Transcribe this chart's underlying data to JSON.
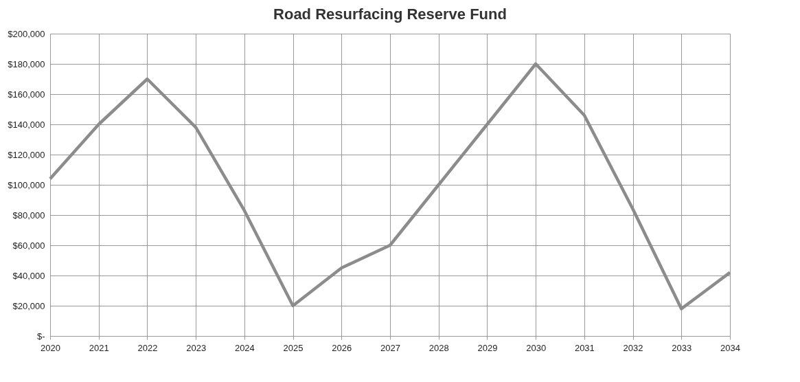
{
  "chart_data": {
    "type": "line",
    "title": "Road Resurfacing  Reserve Fund",
    "categories": [
      "2020",
      "2021",
      "2022",
      "2023",
      "2024",
      "2025",
      "2026",
      "2027",
      "2028",
      "2029",
      "2030",
      "2031",
      "2032",
      "2033",
      "2034"
    ],
    "series": [
      {
        "color": "#8c8c8c",
        "values": [
          104000,
          140000,
          170000,
          138000,
          83000,
          20000,
          45000,
          60000,
          100000,
          140000,
          180000,
          146000,
          84000,
          18000,
          42000
        ]
      }
    ],
    "ylim": [
      0,
      200000
    ],
    "yticks": [
      {
        "value": 0,
        "label": "$-"
      },
      {
        "value": 20000,
        "label": "$20,000"
      },
      {
        "value": 40000,
        "label": "$40,000"
      },
      {
        "value": 60000,
        "label": "$60,000"
      },
      {
        "value": 80000,
        "label": "$80,000"
      },
      {
        "value": 100000,
        "label": "$100,000"
      },
      {
        "value": 120000,
        "label": "$120,000"
      },
      {
        "value": 140000,
        "label": "$140,000"
      },
      {
        "value": 160000,
        "label": "$160,000"
      },
      {
        "value": 180000,
        "label": "$180,000"
      },
      {
        "value": 200000,
        "label": "$200,000"
      }
    ],
    "grid": true,
    "marker": "none",
    "line_style": "solid"
  }
}
